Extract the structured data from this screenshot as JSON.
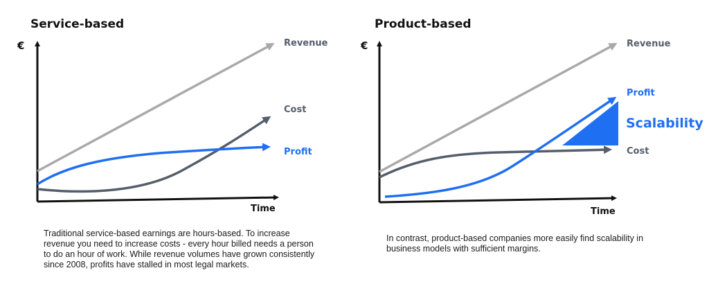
{
  "colors": {
    "revenue": "#a9a9a9",
    "cost": "#555e6b",
    "profit": "#1f6ff2",
    "axis": "#111111"
  },
  "service": {
    "title": "Service-based",
    "y_symbol": "€",
    "x_label": "Time",
    "revenue_label": "Revenue",
    "cost_label": "Cost",
    "profit_label": "Profit",
    "caption": "Traditional service-based earnings are hours-based. To increase revenue you need to increase costs - every hour billed needs a person to do an hour of work. While revenue volumes have grown consistently since 2008, profits have stalled in most legal markets."
  },
  "product": {
    "title": "Product-based",
    "y_symbol": "€",
    "x_label": "Time",
    "revenue_label": "Revenue",
    "profit_label": "Profit",
    "cost_label": "Cost",
    "scalability_label": "Scalability",
    "caption": "In contrast, product-based companies more easily find scalability in business models with sufficient margins."
  }
}
